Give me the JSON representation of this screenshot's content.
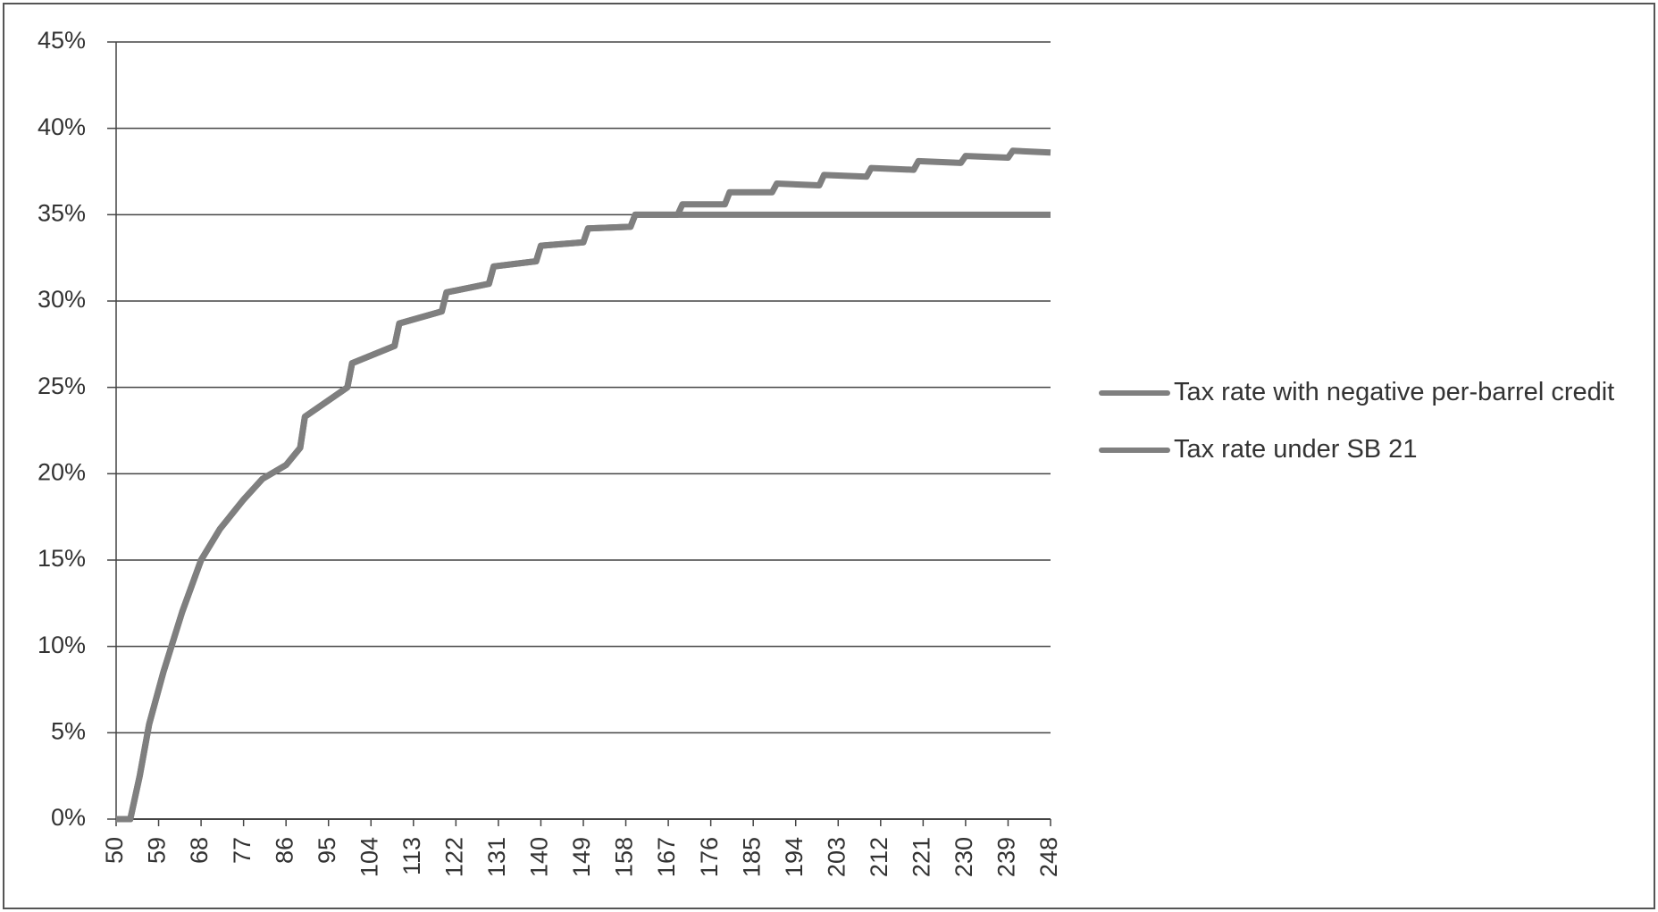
{
  "chart_data": {
    "type": "line",
    "x": [
      50,
      53,
      55,
      57,
      60,
      64,
      68,
      72,
      77,
      81,
      86,
      89,
      90,
      99,
      100,
      109,
      110,
      119,
      120,
      129,
      130,
      139,
      140,
      149,
      150,
      159,
      160,
      169,
      170,
      179,
      180,
      189,
      190,
      199,
      200,
      209,
      210,
      219,
      220,
      229,
      230,
      239,
      240,
      248
    ],
    "series": [
      {
        "name": "Tax rate with negative per-barrel credit",
        "color": "#7f7f7f",
        "values": [
          0,
          0,
          2.5,
          5.5,
          8.5,
          12,
          15,
          16.8,
          18.5,
          19.7,
          20.5,
          21.5,
          23.3,
          25.0,
          26.4,
          27.4,
          28.7,
          29.4,
          30.5,
          31.0,
          32.0,
          32.3,
          33.2,
          33.4,
          34.2,
          34.3,
          35.0,
          35.0,
          35.6,
          35.6,
          36.3,
          36.3,
          36.8,
          36.7,
          37.3,
          37.2,
          37.7,
          37.6,
          38.1,
          38.0,
          38.4,
          38.3,
          38.7,
          38.6
        ]
      },
      {
        "name": "Tax rate under SB 21",
        "color": "#7f7f7f",
        "values": [
          0,
          0,
          2.5,
          5.5,
          8.5,
          12,
          15,
          16.8,
          18.5,
          19.7,
          20.5,
          21.5,
          23.3,
          25.0,
          26.4,
          27.4,
          28.7,
          29.4,
          30.5,
          31.0,
          32.0,
          32.3,
          33.2,
          33.4,
          34.2,
          34.3,
          35.0,
          35,
          35,
          35,
          35,
          35,
          35,
          35,
          35,
          35,
          35,
          35,
          35,
          35,
          35,
          35,
          35,
          35
        ]
      }
    ],
    "xlim": [
      50,
      248
    ],
    "xticks": [
      50,
      59,
      68,
      77,
      86,
      95,
      104,
      113,
      122,
      131,
      140,
      149,
      158,
      167,
      176,
      185,
      194,
      203,
      212,
      221,
      230,
      239,
      248
    ],
    "ylim": [
      0,
      45
    ],
    "yticks": [
      {
        "value": 0,
        "label": "0%"
      },
      {
        "value": 5,
        "label": "5%"
      },
      {
        "value": 10,
        "label": "10%"
      },
      {
        "value": 15,
        "label": "15%"
      },
      {
        "value": 20,
        "label": "20%"
      },
      {
        "value": 25,
        "label": "25%"
      },
      {
        "value": 30,
        "label": "30%"
      },
      {
        "value": 35,
        "label": "35%"
      },
      {
        "value": 40,
        "label": "40%"
      },
      {
        "value": 45,
        "label": "45%"
      }
    ],
    "grid": true,
    "legend": "right"
  }
}
